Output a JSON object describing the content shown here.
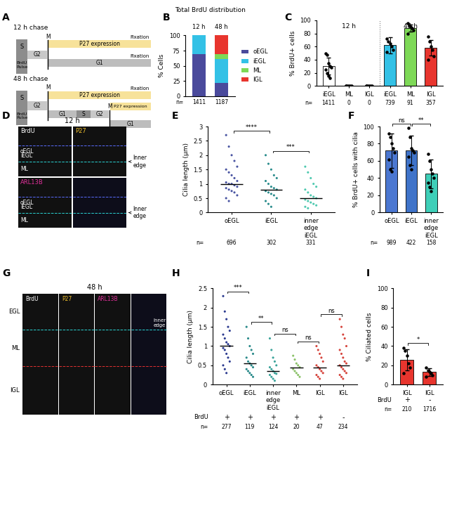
{
  "diagram": {
    "panel": "A",
    "schemes": [
      {
        "title": "12 h chase",
        "pulse": [
          "S",
          "BrdU Pulse"
        ],
        "first": [
          "G2",
          "M"
        ],
        "upper": "P27 expression",
        "upper_end": "Fixation",
        "lower": [
          "G1"
        ],
        "lower_end": "Fixation"
      },
      {
        "title": "48 h chase",
        "pulse": [
          "S",
          "BrdU Pulse"
        ],
        "first": [
          "G2",
          "M"
        ],
        "upper": "P27 expression",
        "upper_end": "Fixation",
        "lower": [
          "G1",
          "S",
          "G2",
          "M"
        ],
        "second_upper": "P27 expression",
        "second_lower": [
          "G1"
        ]
      }
    ]
  },
  "images": [
    {
      "panel": "D",
      "title": "12 h",
      "channels": [
        {
          "name": "BrdU",
          "color": "#ffffff"
        },
        {
          "name": "P27",
          "color": "#f2c12e"
        },
        {
          "name": "ARL13B",
          "color": "#e0309a"
        }
      ],
      "layers": [
        "oEGL",
        "iEGL",
        "ML"
      ],
      "inner_edge": "Inner edge"
    },
    {
      "panel": "G",
      "title": "48 h",
      "channels": [
        {
          "name": "BrdU",
          "color": "#ffffff"
        },
        {
          "name": "P27",
          "color": "#f2c12e"
        },
        {
          "name": "ARL13B",
          "color": "#e0309a"
        }
      ],
      "layers": [
        "EGL",
        "ML",
        "IGL"
      ],
      "inner_edge": "Inner edge"
    }
  ],
  "chart_data": [
    {
      "panel": "B",
      "type": "bar",
      "stacked": true,
      "title": "Total BrdU distribution",
      "ylabel": "% Cells",
      "categories": [
        "12 h",
        "48 h"
      ],
      "series": [
        {
          "name": "oEGL",
          "color": "#4a4a9c",
          "values": [
            69,
            22
          ]
        },
        {
          "name": "iEGL",
          "color": "#33c1e6",
          "values": [
            31,
            39
          ]
        },
        {
          "name": "ML",
          "color": "#7ed957",
          "values": [
            0,
            8
          ]
        },
        {
          "name": "IGL",
          "color": "#e8352e",
          "values": [
            0,
            31
          ]
        }
      ],
      "legend": "right",
      "n_label": "n=",
      "n": [
        1411,
        1187
      ],
      "ylim": [
        0,
        100
      ],
      "yticks": [
        0,
        25,
        50,
        75,
        100
      ]
    },
    {
      "panel": "C",
      "type": "bar",
      "ylabel": "% BrdU+ cells",
      "categories": [
        "iEGL",
        "ML",
        "IGL",
        "iEGL",
        "ML",
        "IGL"
      ],
      "groups": [
        {
          "label": "12 h",
          "span": [
            0,
            2
          ]
        },
        {
          "label": "48 h",
          "span": [
            3,
            5
          ]
        }
      ],
      "values": [
        30,
        0,
        0,
        62,
        88,
        58
      ],
      "errors": [
        13,
        0,
        0,
        12,
        5,
        12
      ],
      "colors": [
        "#ffffff",
        "#ffffff",
        "#ffffff",
        "#33c1e6",
        "#7ed957",
        "#e8352e"
      ],
      "points": [
        [
          50,
          47,
          35,
          30,
          28,
          25,
          20,
          15,
          12
        ],
        [
          0,
          0,
          0,
          0,
          0,
          0
        ],
        [
          0,
          0,
          0,
          0,
          0,
          0
        ],
        [
          72,
          68,
          65,
          60,
          55,
          52
        ],
        [
          95,
          92,
          90,
          88,
          85,
          80
        ],
        [
          75,
          68,
          60,
          55,
          45,
          40
        ]
      ],
      "n_label": "n=",
      "n": [
        1411,
        0,
        0,
        739,
        91,
        357
      ],
      "ylim": [
        0,
        100
      ],
      "yticks": [
        0,
        20,
        40,
        60,
        80,
        100
      ]
    },
    {
      "panel": "E",
      "type": "strip",
      "ylabel": "Cilia length (μm)",
      "categories": [
        "oEGL",
        "iEGL",
        "inner edge iEGL"
      ],
      "colors": [
        "#4a55a2",
        "#2a8c8c",
        "#4fc9b0"
      ],
      "values": [
        [
          2.7,
          2.3,
          2.0,
          1.8,
          1.6,
          1.5,
          1.4,
          1.3,
          1.2,
          1.1,
          1.05,
          1.0,
          1.0,
          0.95,
          0.9,
          0.85,
          0.8,
          0.75,
          0.7,
          0.6,
          0.5,
          0.4
        ],
        [
          2.0,
          1.7,
          1.5,
          1.3,
          1.2,
          1.1,
          1.0,
          0.9,
          0.85,
          0.8,
          0.75,
          0.7,
          0.65,
          0.6,
          0.5,
          0.4,
          0.3,
          0.2
        ],
        [
          1.6,
          1.4,
          1.2,
          1.0,
          0.9,
          0.8,
          0.7,
          0.6,
          0.55,
          0.5,
          0.45,
          0.4,
          0.35,
          0.3,
          0.25,
          0.2,
          0.15
        ]
      ],
      "medians": [
        1.0,
        0.8,
        0.5
      ],
      "significance": [
        {
          "pair": [
            0,
            1
          ],
          "label": "****"
        },
        {
          "pair": [
            1,
            2
          ],
          "label": "***"
        }
      ],
      "n_label": "n=",
      "n": [
        696,
        302,
        331
      ],
      "ylim": [
        0,
        3
      ],
      "yticks": [
        0,
        0.5,
        1,
        1.5,
        2,
        2.5,
        3
      ]
    },
    {
      "panel": "F",
      "type": "bar",
      "ylabel": "% BrdU+ cells with cilia",
      "categories": [
        "oEGL",
        "iEGL",
        "inner edge iEGL"
      ],
      "values": [
        72,
        72,
        45
      ],
      "errors": [
        20,
        17,
        17
      ],
      "colors": [
        "#4b77d1",
        "#3f73c9",
        "#3ecfb8"
      ],
      "points": [
        [
          92,
          88,
          80,
          75,
          70,
          62,
          50,
          48
        ],
        [
          98,
          88,
          75,
          72,
          70,
          65,
          55,
          50
        ],
        [
          68,
          60,
          50,
          45,
          40,
          35,
          30,
          25
        ]
      ],
      "significance": [
        {
          "pair": [
            0,
            1
          ],
          "label": "ns"
        },
        {
          "pair": [
            1,
            2
          ],
          "label": "**"
        }
      ],
      "n_label": "n=",
      "n": [
        989,
        422,
        158
      ],
      "ylim": [
        0,
        100
      ],
      "yticks": [
        0,
        20,
        40,
        60,
        80,
        100
      ]
    },
    {
      "panel": "H",
      "type": "strip",
      "ylabel": "Cilia length (μm)",
      "categories": [
        "oEGL",
        "iEGL",
        "inner edge iEGL",
        "ML",
        "IGL",
        "IGL"
      ],
      "row_label": "BrdU",
      "row": [
        "+",
        "+",
        "+",
        "+",
        "+",
        "-"
      ],
      "colors": [
        "#2b3a8f",
        "#2a8a8a",
        "#3aa39a",
        "#8cc26a",
        "#d6453d",
        "#d6453d"
      ],
      "values": [
        [
          2.3,
          1.9,
          1.7,
          1.5,
          1.4,
          1.3,
          1.2,
          1.1,
          1.05,
          1.0,
          0.95,
          0.9,
          0.8,
          0.7,
          0.6,
          0.5,
          0.4,
          0.3
        ],
        [
          1.5,
          1.2,
          1.0,
          0.9,
          0.8,
          0.7,
          0.6,
          0.55,
          0.5,
          0.45,
          0.4,
          0.35,
          0.3,
          0.25,
          0.2
        ],
        [
          1.2,
          0.9,
          0.7,
          0.6,
          0.5,
          0.45,
          0.4,
          0.35,
          0.3,
          0.28,
          0.25,
          0.2,
          0.15,
          0.1
        ],
        [
          0.75,
          0.65,
          0.55,
          0.5,
          0.45,
          0.4,
          0.35,
          0.3,
          0.25,
          0.2
        ],
        [
          1.0,
          0.9,
          0.8,
          0.7,
          0.6,
          0.5,
          0.45,
          0.4,
          0.35,
          0.3,
          0.25,
          0.2,
          0.15
        ],
        [
          1.7,
          1.5,
          1.3,
          1.2,
          1.0,
          0.9,
          0.8,
          0.7,
          0.6,
          0.55,
          0.5,
          0.45,
          0.4,
          0.35,
          0.3,
          0.25,
          0.2,
          0.15
        ]
      ],
      "medians": [
        1.0,
        0.55,
        0.35,
        0.45,
        0.45,
        0.5
      ],
      "significance": [
        {
          "pair": [
            0,
            1
          ],
          "label": "***"
        },
        {
          "pair": [
            1,
            2
          ],
          "label": "**"
        },
        {
          "pair": [
            2,
            3
          ],
          "label": "ns"
        },
        {
          "pair": [
            3,
            4
          ],
          "label": "ns"
        },
        {
          "pair": [
            4,
            5
          ],
          "label": "ns"
        }
      ],
      "n_label": "n=",
      "n": [
        277,
        119,
        124,
        20,
        47,
        234
      ],
      "ylim": [
        0,
        2.5
      ],
      "yticks": [
        0,
        0.5,
        1,
        1.5,
        2,
        2.5
      ]
    },
    {
      "panel": "I",
      "type": "bar",
      "ylabel": "% Ciliated cells",
      "categories": [
        "IGL",
        "IGL"
      ],
      "row_label": "BrdU",
      "row": [
        "+",
        "-"
      ],
      "values": [
        26,
        13
      ],
      "errors": [
        11,
        4
      ],
      "colors": [
        "#e8352e",
        "#e8352e"
      ],
      "points": [
        [
          38,
          35,
          30,
          22,
          18,
          12
        ],
        [
          18,
          15,
          13,
          12,
          10,
          8
        ]
      ],
      "significance": [
        {
          "pair": [
            0,
            1
          ],
          "label": "*"
        }
      ],
      "n_label": "n=",
      "n": [
        210,
        1716
      ],
      "ylim": [
        0,
        100
      ],
      "yticks": [
        0,
        20,
        40,
        60,
        80,
        100
      ]
    }
  ]
}
